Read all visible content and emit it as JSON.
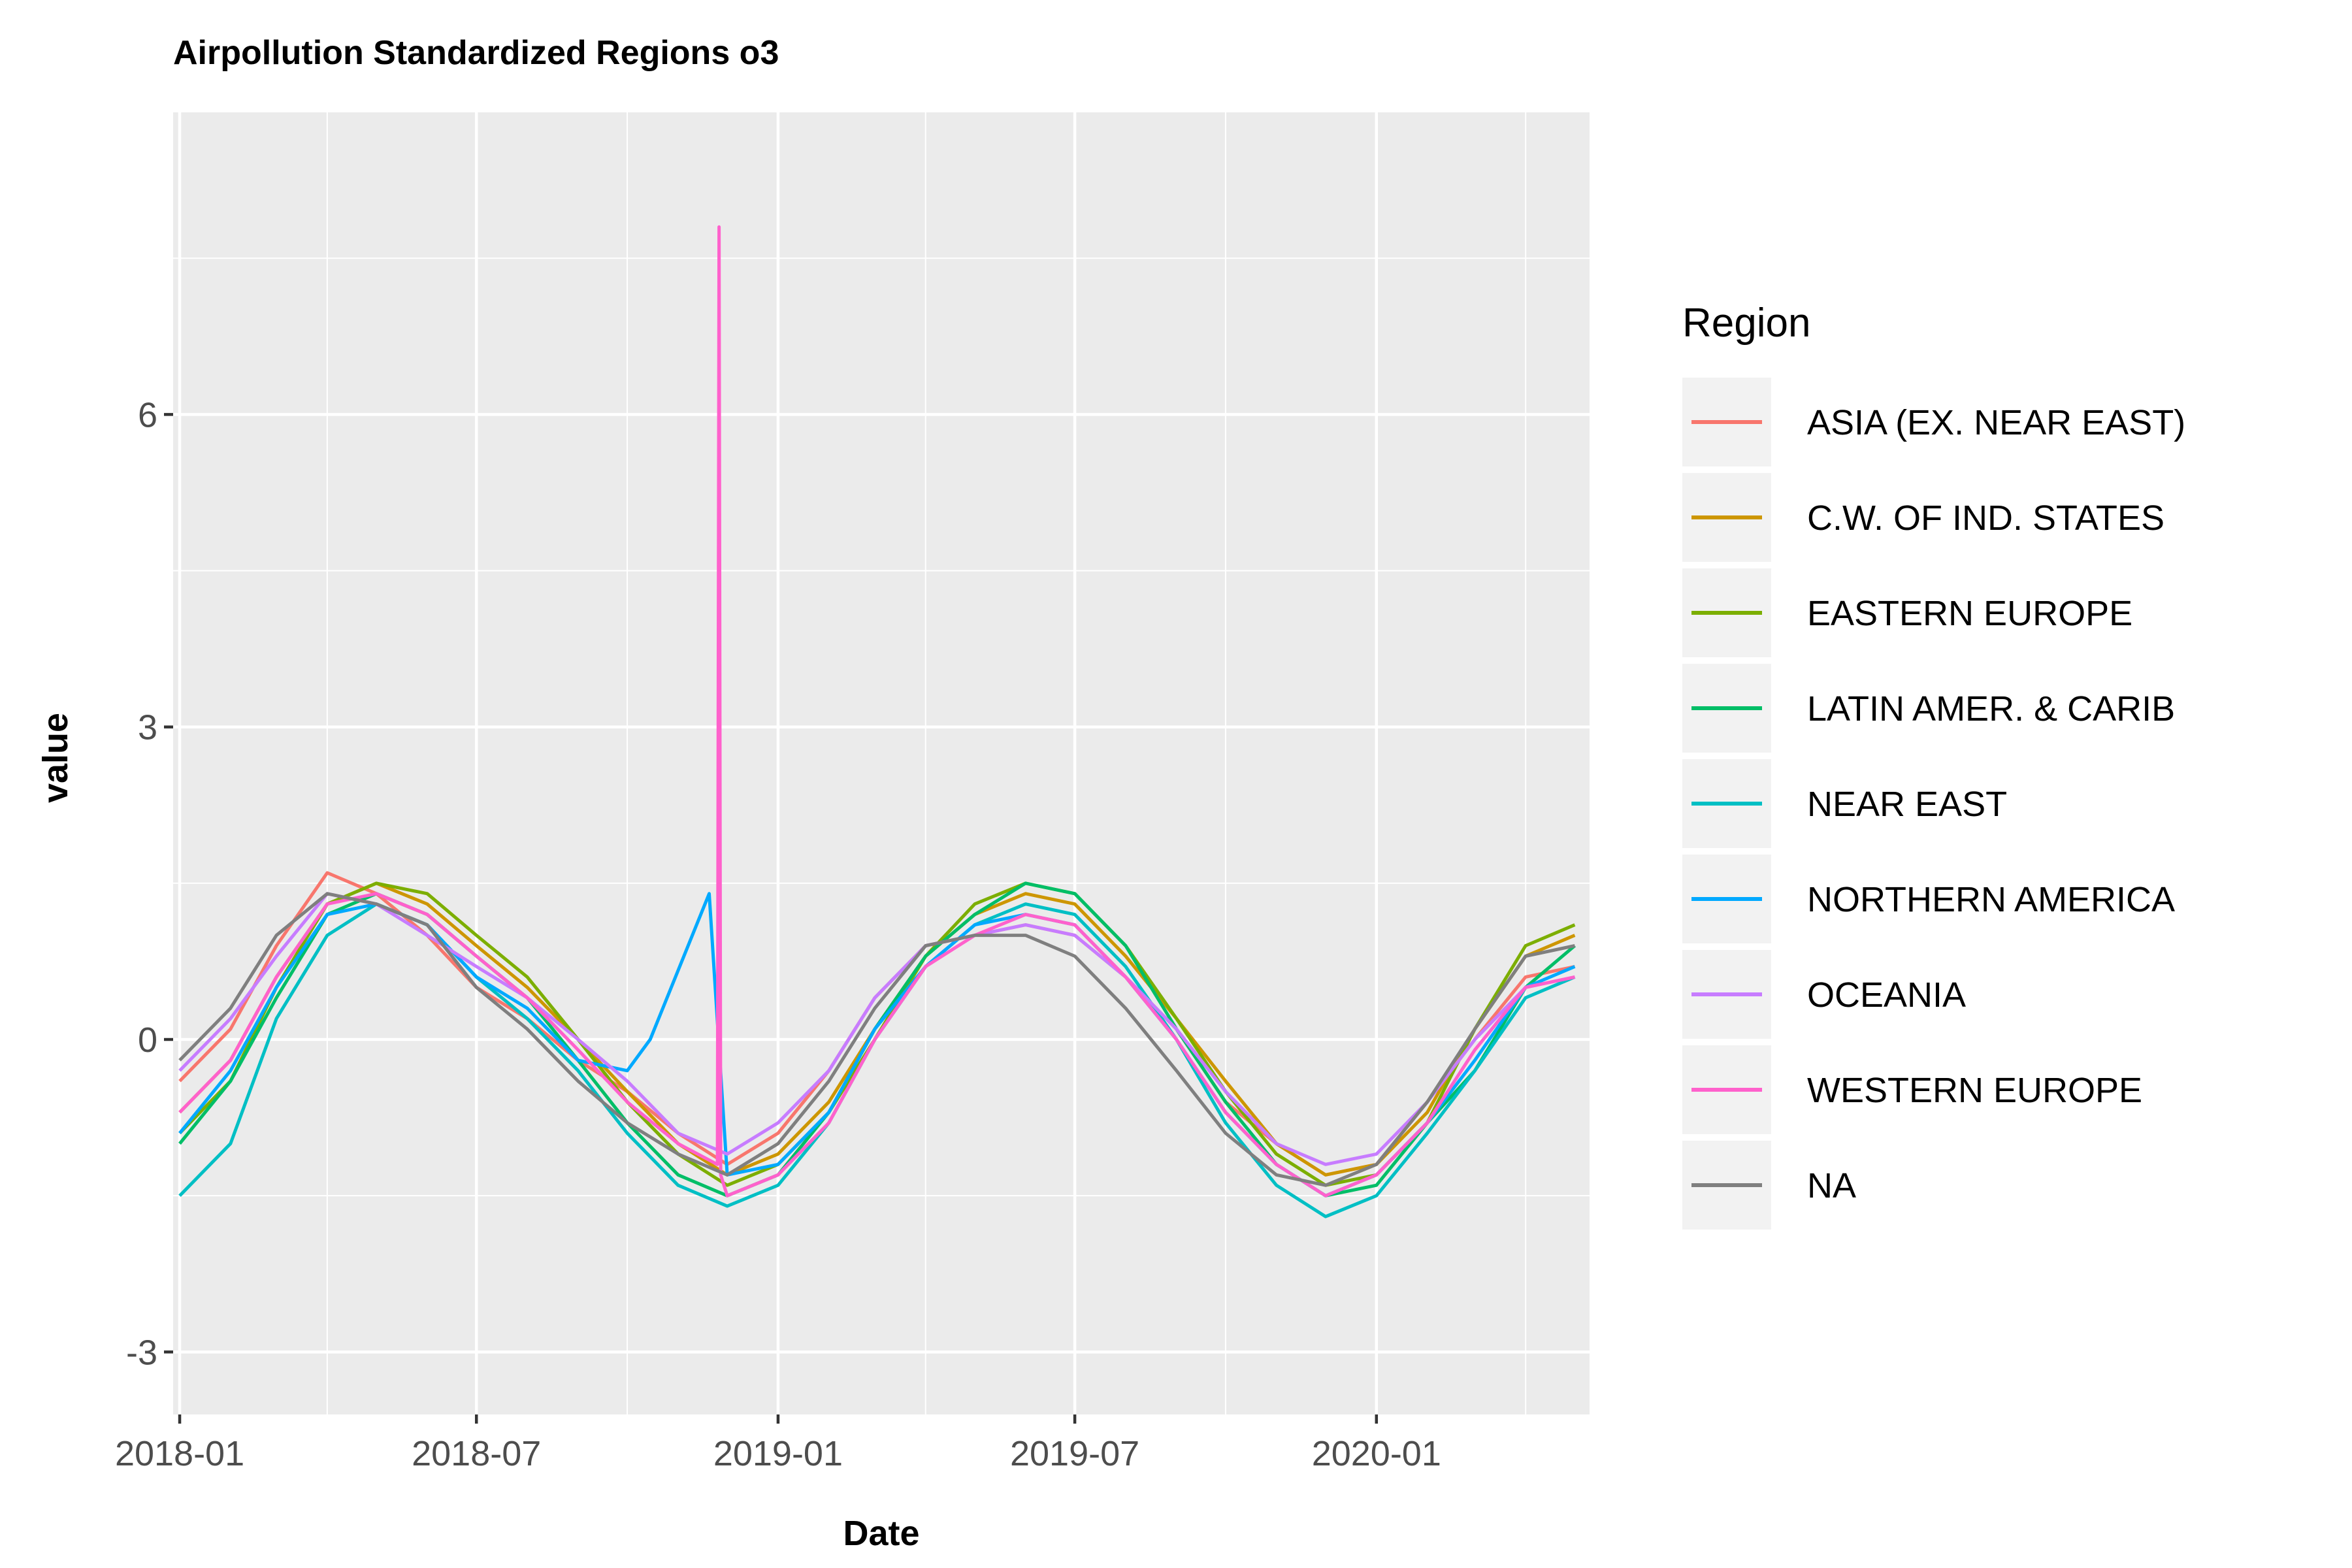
{
  "chart_data": {
    "type": "line",
    "title": "Airpollution Standardized Regions o3",
    "xlabel": "Date",
    "ylabel": "value",
    "x_type": "date",
    "xlim": [
      "2017-12-28",
      "2020-05-10"
    ],
    "ylim": [
      -3.6,
      8.9
    ],
    "x_ticks": [
      {
        "value": "2018-01-01",
        "label": "2018-01"
      },
      {
        "value": "2018-07-01",
        "label": "2018-07"
      },
      {
        "value": "2019-01-01",
        "label": "2019-01"
      },
      {
        "value": "2019-07-01",
        "label": "2019-07"
      },
      {
        "value": "2020-01-01",
        "label": "2020-01"
      }
    ],
    "x_minor_ticks": [
      "2018-04-01",
      "2018-10-01",
      "2019-04-01",
      "2019-10-01",
      "2020-04-01"
    ],
    "y_ticks": [
      {
        "value": -3,
        "label": "-3"
      },
      {
        "value": 0,
        "label": "0"
      },
      {
        "value": 3,
        "label": "3"
      },
      {
        "value": 6,
        "label": "6"
      }
    ],
    "y_minor_ticks": [
      -1.5,
      1.5,
      4.5,
      7.5
    ],
    "grid": true,
    "background": "#ebebeb",
    "legend": {
      "title": "Region",
      "position": "right"
    },
    "series": [
      {
        "name": "ASIA (EX. NEAR EAST)",
        "color": "#F8766D",
        "x": [
          "2018-01-01",
          "2018-02-01",
          "2018-03-01",
          "2018-04-01",
          "2018-05-01",
          "2018-06-01",
          "2018-07-01",
          "2018-08-01",
          "2018-09-01",
          "2018-10-01",
          "2018-11-01",
          "2018-12-01",
          "2019-01-01",
          "2019-02-01",
          "2019-03-01",
          "2019-04-01",
          "2019-05-01",
          "2019-06-01",
          "2019-07-01",
          "2019-08-01",
          "2019-09-01",
          "2019-10-01",
          "2019-11-01",
          "2019-12-01",
          "2020-01-01",
          "2020-02-01",
          "2020-03-01",
          "2020-04-01",
          "2020-05-01"
        ],
        "y": [
          -0.4,
          0.1,
          0.9,
          1.6,
          1.4,
          1.0,
          0.5,
          0.2,
          -0.2,
          -0.5,
          -0.9,
          -1.2,
          -0.9,
          -0.3,
          0.4,
          0.9,
          1.0,
          1.1,
          1.0,
          0.6,
          0.1,
          -0.6,
          -1.0,
          -1.3,
          -1.2,
          -0.6,
          0.0,
          0.6,
          0.7
        ]
      },
      {
        "name": "C.W. OF IND. STATES",
        "color": "#CD9600",
        "x": [
          "2018-01-01",
          "2018-02-01",
          "2018-03-01",
          "2018-04-01",
          "2018-05-01",
          "2018-06-01",
          "2018-07-01",
          "2018-08-01",
          "2018-09-01",
          "2018-10-01",
          "2018-11-01",
          "2018-12-01",
          "2019-01-01",
          "2019-02-01",
          "2019-03-01",
          "2019-04-01",
          "2019-05-01",
          "2019-06-01",
          "2019-07-01",
          "2019-08-01",
          "2019-09-01",
          "2019-10-01",
          "2019-11-01",
          "2019-12-01",
          "2020-01-01",
          "2020-02-01",
          "2020-03-01",
          "2020-04-01",
          "2020-05-01"
        ],
        "y": [
          -0.7,
          -0.2,
          0.6,
          1.3,
          1.5,
          1.3,
          0.9,
          0.5,
          0.0,
          -0.5,
          -1.0,
          -1.3,
          -1.1,
          -0.6,
          0.1,
          0.8,
          1.2,
          1.4,
          1.3,
          0.8,
          0.2,
          -0.4,
          -1.0,
          -1.3,
          -1.2,
          -0.7,
          0.1,
          0.8,
          1.0
        ]
      },
      {
        "name": "EASTERN EUROPE",
        "color": "#7CAE00",
        "x": [
          "2018-01-01",
          "2018-02-01",
          "2018-03-01",
          "2018-04-01",
          "2018-05-01",
          "2018-06-01",
          "2018-07-01",
          "2018-08-01",
          "2018-09-01",
          "2018-10-01",
          "2018-11-01",
          "2018-12-01",
          "2019-01-01",
          "2019-02-01",
          "2019-03-01",
          "2019-04-01",
          "2019-05-01",
          "2019-06-01",
          "2019-07-01",
          "2019-08-01",
          "2019-09-01",
          "2019-10-01",
          "2019-11-01",
          "2019-12-01",
          "2020-01-01",
          "2020-02-01",
          "2020-03-01",
          "2020-04-01",
          "2020-05-01"
        ],
        "y": [
          -0.9,
          -0.4,
          0.5,
          1.3,
          1.5,
          1.4,
          1.0,
          0.6,
          0.0,
          -0.6,
          -1.1,
          -1.4,
          -1.2,
          -0.7,
          0.0,
          0.8,
          1.3,
          1.5,
          1.4,
          0.9,
          0.2,
          -0.5,
          -1.1,
          -1.4,
          -1.3,
          -0.8,
          0.1,
          0.9,
          1.1
        ]
      },
      {
        "name": "LATIN AMER. & CARIB",
        "color": "#00BE67",
        "x": [
          "2018-01-01",
          "2018-02-01",
          "2018-03-01",
          "2018-04-01",
          "2018-05-01",
          "2018-06-01",
          "2018-07-01",
          "2018-08-01",
          "2018-09-01",
          "2018-10-01",
          "2018-11-01",
          "2018-12-01",
          "2019-01-01",
          "2019-02-01",
          "2019-03-01",
          "2019-04-01",
          "2019-05-01",
          "2019-06-01",
          "2019-07-01",
          "2019-08-01",
          "2019-09-01",
          "2019-10-01",
          "2019-11-01",
          "2019-12-01",
          "2020-01-01",
          "2020-02-01",
          "2020-03-01",
          "2020-04-01",
          "2020-05-01"
        ],
        "y": [
          -1.0,
          -0.4,
          0.4,
          1.2,
          1.4,
          1.2,
          0.8,
          0.4,
          -0.2,
          -0.8,
          -1.3,
          -1.5,
          -1.3,
          -0.7,
          0.1,
          0.8,
          1.2,
          1.5,
          1.4,
          0.9,
          0.1,
          -0.6,
          -1.2,
          -1.5,
          -1.4,
          -0.8,
          -0.3,
          0.5,
          0.9
        ]
      },
      {
        "name": "NEAR EAST",
        "color": "#00BFC4",
        "x": [
          "2018-01-01",
          "2018-02-01",
          "2018-03-01",
          "2018-04-01",
          "2018-05-01",
          "2018-06-01",
          "2018-07-01",
          "2018-08-01",
          "2018-09-01",
          "2018-10-01",
          "2018-11-01",
          "2018-12-01",
          "2019-01-01",
          "2019-02-01",
          "2019-03-01",
          "2019-04-01",
          "2019-05-01",
          "2019-06-01",
          "2019-07-01",
          "2019-08-01",
          "2019-09-01",
          "2019-10-01",
          "2019-11-01",
          "2019-12-01",
          "2020-01-01",
          "2020-02-01",
          "2020-03-01",
          "2020-04-01",
          "2020-05-01"
        ],
        "y": [
          -1.5,
          -1.0,
          0.2,
          1.0,
          1.3,
          1.1,
          0.6,
          0.2,
          -0.3,
          -0.9,
          -1.4,
          -1.6,
          -1.4,
          -0.8,
          0.0,
          0.7,
          1.1,
          1.3,
          1.2,
          0.7,
          0.0,
          -0.8,
          -1.4,
          -1.7,
          -1.5,
          -0.9,
          -0.3,
          0.4,
          0.6
        ]
      },
      {
        "name": "NORTHERN AMERICA",
        "color": "#00A9FF",
        "x": [
          "2018-01-01",
          "2018-02-01",
          "2018-03-01",
          "2018-04-01",
          "2018-05-01",
          "2018-06-01",
          "2018-07-01",
          "2018-08-01",
          "2018-09-01",
          "2018-10-01",
          "2018-10-15",
          "2018-11-20",
          "2018-12-01",
          "2019-01-01",
          "2019-02-01",
          "2019-03-01",
          "2019-04-01",
          "2019-05-01",
          "2019-06-01",
          "2019-07-01",
          "2019-08-01",
          "2019-09-01",
          "2019-10-01",
          "2019-11-01",
          "2019-12-01",
          "2020-01-01",
          "2020-02-01",
          "2020-03-01",
          "2020-04-01",
          "2020-05-01"
        ],
        "y": [
          -0.9,
          -0.3,
          0.5,
          1.2,
          1.3,
          1.1,
          0.6,
          0.3,
          -0.2,
          -0.3,
          0.0,
          1.4,
          -1.3,
          -1.2,
          -0.7,
          0.1,
          0.7,
          1.1,
          1.2,
          1.1,
          0.6,
          0.0,
          -0.7,
          -1.2,
          -1.5,
          -1.3,
          -0.8,
          -0.2,
          0.5,
          0.7
        ]
      },
      {
        "name": "OCEANIA",
        "color": "#C77CFF",
        "x": [
          "2018-01-01",
          "2018-02-01",
          "2018-03-01",
          "2018-04-01",
          "2018-05-01",
          "2018-06-01",
          "2018-07-01",
          "2018-08-01",
          "2018-09-01",
          "2018-10-01",
          "2018-11-01",
          "2018-12-01",
          "2019-01-01",
          "2019-02-01",
          "2019-03-01",
          "2019-04-01",
          "2019-05-01",
          "2019-06-01",
          "2019-07-01",
          "2019-08-01",
          "2019-09-01",
          "2019-10-01",
          "2019-11-01",
          "2019-12-01",
          "2020-01-01",
          "2020-02-01",
          "2020-03-01",
          "2020-04-01",
          "2020-05-01"
        ],
        "y": [
          -0.3,
          0.2,
          0.8,
          1.4,
          1.3,
          1.0,
          0.7,
          0.4,
          0.0,
          -0.4,
          -0.9,
          -1.1,
          -0.8,
          -0.3,
          0.4,
          0.9,
          1.0,
          1.1,
          1.0,
          0.6,
          0.1,
          -0.5,
          -1.0,
          -1.2,
          -1.1,
          -0.6,
          0.0,
          0.5,
          0.6
        ]
      },
      {
        "name": "WESTERN EUROPE",
        "color": "#FF61CC",
        "x": [
          "2018-01-01",
          "2018-02-01",
          "2018-03-01",
          "2018-04-01",
          "2018-05-01",
          "2018-06-01",
          "2018-07-01",
          "2018-08-01",
          "2018-09-01",
          "2018-10-01",
          "2018-11-01",
          "2018-11-25",
          "2018-11-26",
          "2018-11-27",
          "2018-12-01",
          "2019-01-01",
          "2019-02-01",
          "2019-03-01",
          "2019-04-01",
          "2019-05-01",
          "2019-06-01",
          "2019-07-01",
          "2019-08-01",
          "2019-09-01",
          "2019-10-01",
          "2019-11-01",
          "2019-12-01",
          "2020-01-01",
          "2020-02-01",
          "2020-03-01",
          "2020-04-01",
          "2020-05-01"
        ],
        "y": [
          -0.7,
          -0.2,
          0.6,
          1.3,
          1.4,
          1.2,
          0.8,
          0.4,
          -0.1,
          -0.6,
          -1.0,
          -1.2,
          7.8,
          -1.3,
          -1.5,
          -1.3,
          -0.8,
          0.0,
          0.7,
          1.0,
          1.2,
          1.1,
          0.6,
          0.0,
          -0.7,
          -1.2,
          -1.5,
          -1.3,
          -0.8,
          -0.1,
          0.5,
          0.6
        ]
      },
      {
        "name": "NA",
        "color": "#7F7F7F",
        "x": [
          "2018-01-01",
          "2018-02-01",
          "2018-03-01",
          "2018-04-01",
          "2018-05-01",
          "2018-06-01",
          "2018-07-01",
          "2018-08-01",
          "2018-09-01",
          "2018-10-01",
          "2018-11-01",
          "2018-12-01",
          "2019-01-01",
          "2019-02-01",
          "2019-03-01",
          "2019-04-01",
          "2019-05-01",
          "2019-06-01",
          "2019-07-01",
          "2019-08-01",
          "2019-09-01",
          "2019-10-01",
          "2019-11-01",
          "2019-12-01",
          "2020-01-01",
          "2020-02-01",
          "2020-03-01",
          "2020-04-01",
          "2020-05-01"
        ],
        "y": [
          -0.2,
          0.3,
          1.0,
          1.4,
          1.3,
          1.1,
          0.5,
          0.1,
          -0.4,
          -0.8,
          -1.1,
          -1.3,
          -1.0,
          -0.4,
          0.3,
          0.9,
          1.0,
          1.0,
          0.8,
          0.3,
          -0.3,
          -0.9,
          -1.3,
          -1.4,
          -1.2,
          -0.6,
          0.1,
          0.8,
          0.9
        ]
      }
    ]
  }
}
